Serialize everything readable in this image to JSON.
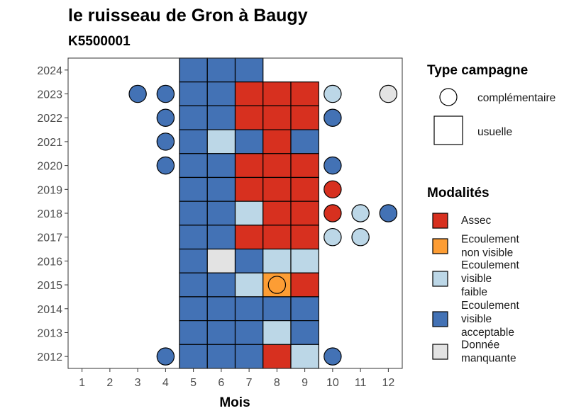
{
  "chart_data": {
    "type": "heatmap",
    "title": "le ruisseau de Gron à Baugy",
    "subtitle": "K5500001",
    "xlabel": "Mois",
    "ylabel": "",
    "x_ticks": [
      1,
      2,
      3,
      4,
      5,
      6,
      7,
      8,
      9,
      10,
      11,
      12
    ],
    "y_ticks": [
      2012,
      2013,
      2014,
      2015,
      2016,
      2017,
      2018,
      2019,
      2020,
      2021,
      2022,
      2023,
      2024
    ],
    "xlim": [
      0.5,
      12.5
    ],
    "ylim": [
      2011.5,
      2024.5
    ],
    "colors": {
      "Assec": "#d7301f",
      "Ecoulement non visible": "#fd9d34",
      "Ecoulement visible faible": "#bcd7e7",
      "Ecoulement visible acceptable": "#4372b5",
      "Donnée manquante": "#e3e3e3"
    },
    "legend_campagne": {
      "title": "Type campagne",
      "items": [
        {
          "label": "complémentaire",
          "shape": "circle"
        },
        {
          "label": "usuelle",
          "shape": "square"
        }
      ]
    },
    "legend_modalites": {
      "title": "Modalités",
      "items": [
        {
          "key": "Assec",
          "lines": [
            "Assec"
          ]
        },
        {
          "key": "Ecoulement non visible",
          "lines": [
            "Ecoulement",
            "non visible"
          ]
        },
        {
          "key": "Ecoulement visible faible",
          "lines": [
            "Ecoulement",
            "visible",
            "faible"
          ]
        },
        {
          "key": "Ecoulement visible acceptable",
          "lines": [
            "Ecoulement",
            "visible",
            "acceptable"
          ]
        },
        {
          "key": "Donnée manquante",
          "lines": [
            "Donnée",
            "manquante"
          ]
        }
      ]
    },
    "usuelle": [
      {
        "year": 2024,
        "month": 5,
        "modalite": "Ecoulement visible acceptable"
      },
      {
        "year": 2024,
        "month": 6,
        "modalite": "Ecoulement visible acceptable"
      },
      {
        "year": 2024,
        "month": 7,
        "modalite": "Ecoulement visible acceptable"
      },
      {
        "year": 2023,
        "month": 5,
        "modalite": "Ecoulement visible acceptable"
      },
      {
        "year": 2023,
        "month": 6,
        "modalite": "Ecoulement visible acceptable"
      },
      {
        "year": 2023,
        "month": 7,
        "modalite": "Assec"
      },
      {
        "year": 2023,
        "month": 8,
        "modalite": "Assec"
      },
      {
        "year": 2023,
        "month": 9,
        "modalite": "Assec"
      },
      {
        "year": 2022,
        "month": 5,
        "modalite": "Ecoulement visible acceptable"
      },
      {
        "year": 2022,
        "month": 6,
        "modalite": "Ecoulement visible acceptable"
      },
      {
        "year": 2022,
        "month": 7,
        "modalite": "Assec"
      },
      {
        "year": 2022,
        "month": 8,
        "modalite": "Assec"
      },
      {
        "year": 2022,
        "month": 9,
        "modalite": "Assec"
      },
      {
        "year": 2021,
        "month": 5,
        "modalite": "Ecoulement visible acceptable"
      },
      {
        "year": 2021,
        "month": 6,
        "modalite": "Ecoulement visible faible"
      },
      {
        "year": 2021,
        "month": 7,
        "modalite": "Ecoulement visible acceptable"
      },
      {
        "year": 2021,
        "month": 8,
        "modalite": "Assec"
      },
      {
        "year": 2021,
        "month": 9,
        "modalite": "Ecoulement visible acceptable"
      },
      {
        "year": 2020,
        "month": 5,
        "modalite": "Ecoulement visible acceptable"
      },
      {
        "year": 2020,
        "month": 6,
        "modalite": "Ecoulement visible acceptable"
      },
      {
        "year": 2020,
        "month": 7,
        "modalite": "Assec"
      },
      {
        "year": 2020,
        "month": 8,
        "modalite": "Assec"
      },
      {
        "year": 2020,
        "month": 9,
        "modalite": "Assec"
      },
      {
        "year": 2019,
        "month": 5,
        "modalite": "Ecoulement visible acceptable"
      },
      {
        "year": 2019,
        "month": 6,
        "modalite": "Ecoulement visible acceptable"
      },
      {
        "year": 2019,
        "month": 7,
        "modalite": "Assec"
      },
      {
        "year": 2019,
        "month": 8,
        "modalite": "Assec"
      },
      {
        "year": 2019,
        "month": 9,
        "modalite": "Assec"
      },
      {
        "year": 2018,
        "month": 5,
        "modalite": "Ecoulement visible acceptable"
      },
      {
        "year": 2018,
        "month": 6,
        "modalite": "Ecoulement visible acceptable"
      },
      {
        "year": 2018,
        "month": 7,
        "modalite": "Ecoulement visible faible"
      },
      {
        "year": 2018,
        "month": 8,
        "modalite": "Assec"
      },
      {
        "year": 2018,
        "month": 9,
        "modalite": "Assec"
      },
      {
        "year": 2017,
        "month": 5,
        "modalite": "Ecoulement visible acceptable"
      },
      {
        "year": 2017,
        "month": 6,
        "modalite": "Ecoulement visible acceptable"
      },
      {
        "year": 2017,
        "month": 7,
        "modalite": "Assec"
      },
      {
        "year": 2017,
        "month": 8,
        "modalite": "Assec"
      },
      {
        "year": 2017,
        "month": 9,
        "modalite": "Assec"
      },
      {
        "year": 2016,
        "month": 5,
        "modalite": "Ecoulement visible acceptable"
      },
      {
        "year": 2016,
        "month": 6,
        "modalite": "Donnée manquante"
      },
      {
        "year": 2016,
        "month": 7,
        "modalite": "Ecoulement visible acceptable"
      },
      {
        "year": 2016,
        "month": 8,
        "modalite": "Ecoulement visible faible"
      },
      {
        "year": 2016,
        "month": 9,
        "modalite": "Ecoulement visible faible"
      },
      {
        "year": 2015,
        "month": 5,
        "modalite": "Ecoulement visible acceptable"
      },
      {
        "year": 2015,
        "month": 6,
        "modalite": "Ecoulement visible acceptable"
      },
      {
        "year": 2015,
        "month": 7,
        "modalite": "Ecoulement visible faible"
      },
      {
        "year": 2015,
        "month": 8,
        "modalite": "Ecoulement non visible"
      },
      {
        "year": 2015,
        "month": 9,
        "modalite": "Assec"
      },
      {
        "year": 2014,
        "month": 5,
        "modalite": "Ecoulement visible acceptable"
      },
      {
        "year": 2014,
        "month": 6,
        "modalite": "Ecoulement visible acceptable"
      },
      {
        "year": 2014,
        "month": 7,
        "modalite": "Ecoulement visible acceptable"
      },
      {
        "year": 2014,
        "month": 8,
        "modalite": "Ecoulement visible acceptable"
      },
      {
        "year": 2014,
        "month": 9,
        "modalite": "Ecoulement visible acceptable"
      },
      {
        "year": 2013,
        "month": 5,
        "modalite": "Ecoulement visible acceptable"
      },
      {
        "year": 2013,
        "month": 6,
        "modalite": "Ecoulement visible acceptable"
      },
      {
        "year": 2013,
        "month": 7,
        "modalite": "Ecoulement visible acceptable"
      },
      {
        "year": 2013,
        "month": 8,
        "modalite": "Ecoulement visible faible"
      },
      {
        "year": 2013,
        "month": 9,
        "modalite": "Ecoulement visible acceptable"
      },
      {
        "year": 2012,
        "month": 5,
        "modalite": "Ecoulement visible acceptable"
      },
      {
        "year": 2012,
        "month": 6,
        "modalite": "Ecoulement visible acceptable"
      },
      {
        "year": 2012,
        "month": 7,
        "modalite": "Ecoulement visible acceptable"
      },
      {
        "year": 2012,
        "month": 8,
        "modalite": "Assec"
      },
      {
        "year": 2012,
        "month": 9,
        "modalite": "Ecoulement visible faible"
      }
    ],
    "complementaire": [
      {
        "year": 2023,
        "month": 3,
        "modalite": "Ecoulement visible acceptable"
      },
      {
        "year": 2023,
        "month": 4,
        "modalite": "Ecoulement visible acceptable"
      },
      {
        "year": 2023,
        "month": 10,
        "modalite": "Ecoulement visible faible"
      },
      {
        "year": 2023,
        "month": 12,
        "modalite": "Donnée manquante"
      },
      {
        "year": 2022,
        "month": 4,
        "modalite": "Ecoulement visible acceptable"
      },
      {
        "year": 2022,
        "month": 10,
        "modalite": "Ecoulement visible acceptable"
      },
      {
        "year": 2021,
        "month": 4,
        "modalite": "Ecoulement visible acceptable"
      },
      {
        "year": 2020,
        "month": 4,
        "modalite": "Ecoulement visible acceptable"
      },
      {
        "year": 2020,
        "month": 10,
        "modalite": "Ecoulement visible acceptable"
      },
      {
        "year": 2019,
        "month": 10,
        "modalite": "Assec"
      },
      {
        "year": 2018,
        "month": 10,
        "modalite": "Assec"
      },
      {
        "year": 2018,
        "month": 11,
        "modalite": "Ecoulement visible faible"
      },
      {
        "year": 2018,
        "month": 12,
        "modalite": "Ecoulement visible acceptable"
      },
      {
        "year": 2017,
        "month": 10,
        "modalite": "Ecoulement visible faible"
      },
      {
        "year": 2017,
        "month": 11,
        "modalite": "Ecoulement visible faible"
      },
      {
        "year": 2015,
        "month": 8,
        "modalite": "Ecoulement non visible"
      },
      {
        "year": 2012,
        "month": 4,
        "modalite": "Ecoulement visible acceptable"
      },
      {
        "year": 2012,
        "month": 10,
        "modalite": "Ecoulement visible acceptable"
      }
    ]
  }
}
